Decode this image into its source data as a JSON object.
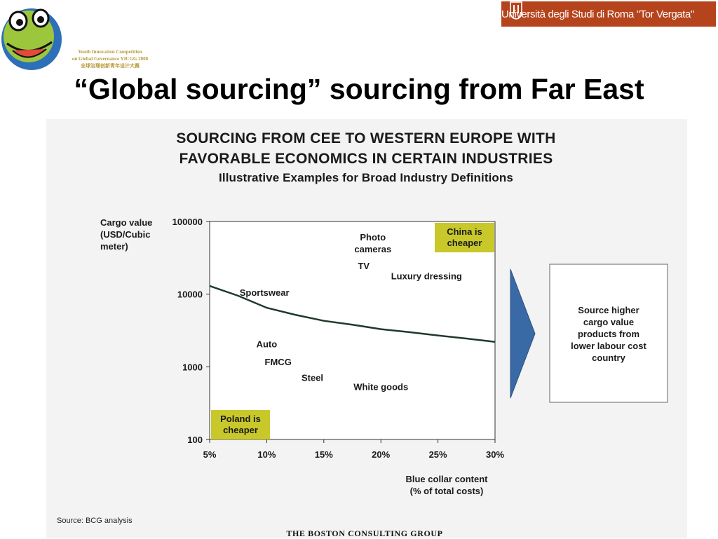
{
  "logo": {
    "name": "frog-logo-icon",
    "caption_lines": [
      "Youth Innovation Competition",
      "on Global Governance YICGG 2008",
      "全球治理创新青年设计大赛"
    ]
  },
  "university": {
    "text": "Università degli Studi di Roma \"Tor Vergata\"",
    "color": "#b5441c"
  },
  "slide_title": "“Global sourcing” sourcing from Far East",
  "chart_header": {
    "line1": "SOURCING FROM CEE TO WESTERN EUROPE WITH",
    "line2": "FAVORABLE ECONOMICS IN CERTAIN INDUSTRIES",
    "line3": "Illustrative Examples for Broad Industry Definitions"
  },
  "chart_data": {
    "type": "line",
    "title": "SOURCING FROM CEE TO WESTERN EUROPE WITH FAVORABLE ECONOMICS IN CERTAIN INDUSTRIES",
    "subtitle": "Illustrative Examples for Broad Industry Definitions",
    "ylabel_lines": [
      "Cargo value",
      "(USD/Cubic",
      "meter)"
    ],
    "xlabel_lines": [
      "Blue collar content",
      "(% of total costs)"
    ],
    "y_scale": "log",
    "ylim": [
      100,
      100000
    ],
    "yticks": [
      100,
      1000,
      10000,
      100000
    ],
    "ytick_labels": [
      "100",
      "1000",
      "10000",
      "100000"
    ],
    "xlim": [
      5,
      30
    ],
    "xticks": [
      5,
      10,
      15,
      20,
      25,
      30
    ],
    "xtick_labels": [
      "5%",
      "10%",
      "15%",
      "20%",
      "25%",
      "30%"
    ],
    "grid": false,
    "series": [
      {
        "x": [
          5,
          7.5,
          10,
          12.5,
          15,
          17.5,
          20,
          22.5,
          25,
          27.5,
          30
        ],
        "y": [
          13000,
          9500,
          6500,
          5200,
          4300,
          3800,
          3300,
          3000,
          2700,
          2450,
          2200
        ]
      }
    ],
    "point_labels": [
      {
        "text_lines": [
          "Photo",
          "cameras"
        ],
        "x": 19.3,
        "y": 55000
      },
      {
        "text_lines": [
          "TV"
        ],
        "x": 18.5,
        "y": 22000
      },
      {
        "text_lines": [
          "Luxury dressing"
        ],
        "x": 24,
        "y": 16000
      },
      {
        "text_lines": [
          "Sportswear"
        ],
        "x": 9.8,
        "y": 9500
      },
      {
        "text_lines": [
          "Auto"
        ],
        "x": 10,
        "y": 1850
      },
      {
        "text_lines": [
          "FMCG"
        ],
        "x": 11,
        "y": 1050
      },
      {
        "text_lines": [
          "Steel"
        ],
        "x": 14,
        "y": 640
      },
      {
        "text_lines": [
          "White goods"
        ],
        "x": 20,
        "y": 480
      }
    ],
    "callouts": [
      {
        "text_lines": [
          "China is",
          "cheaper"
        ],
        "position": "top-right",
        "color": "#c8c82a"
      },
      {
        "text_lines": [
          "Poland is",
          "cheaper"
        ],
        "position": "bottom-left",
        "color": "#c8c82a"
      }
    ],
    "side_box": {
      "text_lines": [
        "Source higher",
        "cargo value",
        "products from",
        "lower labour cost",
        "country"
      ],
      "arrow_color": "#3a6aa5"
    }
  },
  "source_note": "Source:    BCG analysis",
  "footer": "THE BOSTON CONSULTING GROUP"
}
